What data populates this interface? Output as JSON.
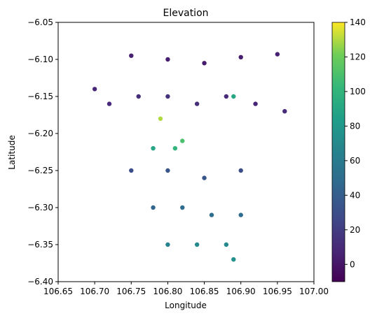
{
  "chart_data": {
    "type": "scatter",
    "title": "Elevation",
    "xlabel": "Longitude",
    "ylabel": "Latitude",
    "xlim": [
      106.65,
      107.0
    ],
    "ylim": [
      -6.4,
      -6.05
    ],
    "xticks": [
      106.65,
      106.7,
      106.75,
      106.8,
      106.85,
      106.9,
      106.95,
      107.0
    ],
    "xtick_labels": [
      "106.65",
      "106.70",
      "106.75",
      "106.80",
      "106.85",
      "106.90",
      "106.95",
      "107.00"
    ],
    "yticks": [
      -6.05,
      -6.1,
      -6.15,
      -6.2,
      -6.25,
      -6.3,
      -6.35,
      -6.4
    ],
    "ytick_labels": [
      "−6.05",
      "−6.10",
      "−6.15",
      "−6.20",
      "−6.25",
      "−6.30",
      "−6.35",
      "−6.40"
    ],
    "grid": false,
    "colorbar": {
      "label": "",
      "colormap": "viridis",
      "range": [
        -10,
        140
      ],
      "ticks": [
        0,
        20,
        40,
        60,
        80,
        100,
        120,
        140
      ],
      "tick_labels": [
        "0",
        "20",
        "40",
        "60",
        "80",
        "100",
        "120",
        "140"
      ]
    },
    "series": [
      {
        "color_by": "elevation",
        "points": [
          {
            "x": 106.75,
            "y": -6.095,
            "elev": 5
          },
          {
            "x": 106.8,
            "y": -6.1,
            "elev": 4
          },
          {
            "x": 106.85,
            "y": -6.105,
            "elev": 3
          },
          {
            "x": 106.9,
            "y": -6.097,
            "elev": 4
          },
          {
            "x": 106.95,
            "y": -6.093,
            "elev": 5
          },
          {
            "x": 106.7,
            "y": -6.14,
            "elev": 8
          },
          {
            "x": 106.72,
            "y": -6.16,
            "elev": 10
          },
          {
            "x": 106.76,
            "y": -6.15,
            "elev": 12
          },
          {
            "x": 106.8,
            "y": -6.15,
            "elev": 15
          },
          {
            "x": 106.84,
            "y": -6.16,
            "elev": 12
          },
          {
            "x": 106.88,
            "y": -6.15,
            "elev": 10
          },
          {
            "x": 106.92,
            "y": -6.16,
            "elev": 8
          },
          {
            "x": 106.96,
            "y": -6.17,
            "elev": 10
          },
          {
            "x": 106.79,
            "y": -6.18,
            "elev": 130
          },
          {
            "x": 106.82,
            "y": -6.21,
            "elev": 110
          },
          {
            "x": 106.81,
            "y": -6.22,
            "elev": 100
          },
          {
            "x": 106.78,
            "y": -6.22,
            "elev": 90
          },
          {
            "x": 106.89,
            "y": -6.15,
            "elev": 90
          },
          {
            "x": 106.75,
            "y": -6.25,
            "elev": 30
          },
          {
            "x": 106.8,
            "y": -6.25,
            "elev": 35
          },
          {
            "x": 106.85,
            "y": -6.26,
            "elev": 35
          },
          {
            "x": 106.9,
            "y": -6.25,
            "elev": 30
          },
          {
            "x": 106.78,
            "y": -6.3,
            "elev": 45
          },
          {
            "x": 106.82,
            "y": -6.3,
            "elev": 50
          },
          {
            "x": 106.86,
            "y": -6.31,
            "elev": 50
          },
          {
            "x": 106.9,
            "y": -6.31,
            "elev": 50
          },
          {
            "x": 106.8,
            "y": -6.35,
            "elev": 65
          },
          {
            "x": 106.84,
            "y": -6.35,
            "elev": 70
          },
          {
            "x": 106.88,
            "y": -6.35,
            "elev": 70
          },
          {
            "x": 106.89,
            "y": -6.37,
            "elev": 75
          }
        ]
      }
    ]
  }
}
